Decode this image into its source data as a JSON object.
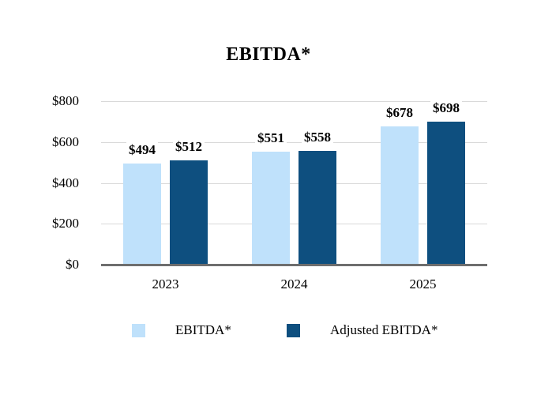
{
  "chart_data": {
    "type": "bar",
    "title": "EBITDA*",
    "categories": [
      "2023",
      "2024",
      "2025"
    ],
    "series": [
      {
        "name": "EBITDA*",
        "color": "#BFE1FB",
        "values": [
          494,
          551,
          678
        ]
      },
      {
        "name": "Adjusted EBITDA*",
        "color": "#0E4F7F",
        "values": [
          512,
          558,
          698
        ]
      }
    ],
    "value_prefix": "$",
    "value_labels": [
      [
        "$494",
        "$551",
        "$678"
      ],
      [
        "$512",
        "$558",
        "$698"
      ]
    ],
    "ylim": [
      0,
      800
    ],
    "yticks": [
      {
        "label": "$0",
        "value": 0
      },
      {
        "label": "$200",
        "value": 200
      },
      {
        "label": "$400",
        "value": 400
      },
      {
        "label": "$600",
        "value": 600
      },
      {
        "label": "$800",
        "value": 800
      }
    ],
    "grid": true,
    "legend_position": "bottom"
  },
  "colors": {
    "bar_light": "#BFE1FB",
    "bar_dark": "#0E4F7F",
    "gridline": "#D9D9D9",
    "axis_line": "#6E6E6E",
    "text": "#000000",
    "background": "#FFFFFF"
  }
}
